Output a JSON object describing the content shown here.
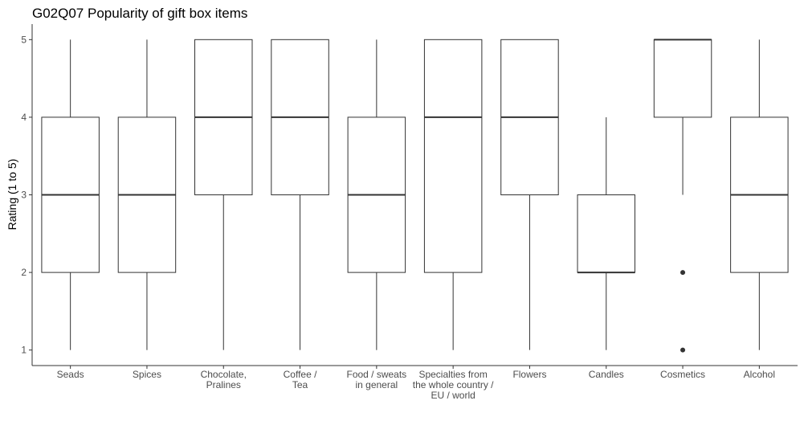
{
  "chart_data": {
    "type": "boxplot",
    "title": "G02Q07 Popularity of gift box items",
    "xlabel": "",
    "ylabel": "Rating (1 to 5)",
    "ylim": [
      0.8,
      5.2
    ],
    "yticks": [
      1,
      2,
      3,
      4,
      5
    ],
    "grid": false,
    "categories": [
      "Seads",
      "Spices",
      "Chocolate,\nPralines",
      "Coffee /\nTea",
      "Food / sweats\nin general",
      "Specialties from\nthe whole country /\nEU / world",
      "Flowers",
      "Candles",
      "Cosmetics",
      "Alcohol"
    ],
    "boxes": [
      {
        "min": 1,
        "q1": 2,
        "median": 3,
        "q3": 4,
        "max": 5,
        "outliers": []
      },
      {
        "min": 1,
        "q1": 2,
        "median": 3,
        "q3": 4,
        "max": 5,
        "outliers": []
      },
      {
        "min": 1,
        "q1": 3,
        "median": 4,
        "q3": 5,
        "max": 5,
        "outliers": []
      },
      {
        "min": 1,
        "q1": 3,
        "median": 4,
        "q3": 5,
        "max": 5,
        "outliers": []
      },
      {
        "min": 1,
        "q1": 2,
        "median": 3,
        "q3": 4,
        "max": 5,
        "outliers": []
      },
      {
        "min": 1,
        "q1": 2,
        "median": 4,
        "q3": 5,
        "max": 5,
        "outliers": []
      },
      {
        "min": 1,
        "q1": 3,
        "median": 4,
        "q3": 5,
        "max": 5,
        "outliers": []
      },
      {
        "min": 1,
        "q1": 2,
        "median": 2,
        "q3": 3,
        "max": 4,
        "outliers": []
      },
      {
        "min": 3,
        "q1": 4,
        "median": 5,
        "q3": 5,
        "max": 5,
        "outliers": [
          2,
          1
        ]
      },
      {
        "min": 1,
        "q1": 2,
        "median": 3,
        "q3": 4,
        "max": 5,
        "outliers": []
      }
    ]
  }
}
